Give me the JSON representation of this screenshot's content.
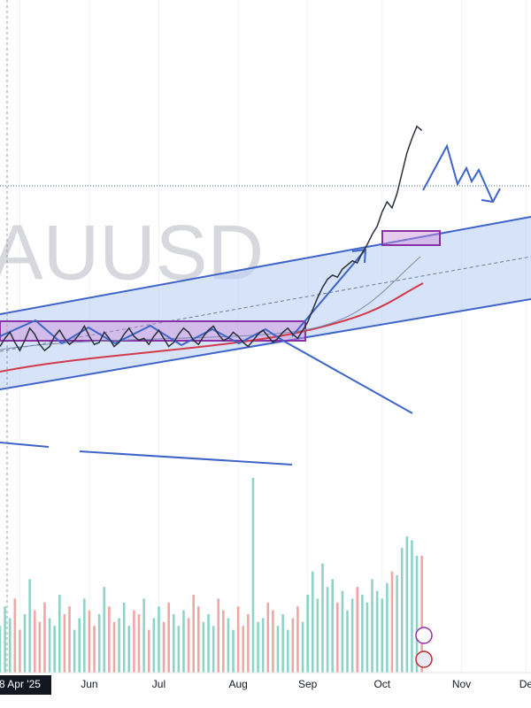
{
  "chart_data": {
    "type": "line",
    "watermark": "AUUSD",
    "xlim": [
      0,
      107
    ],
    "xticks": [
      {
        "value": 4,
        "label": "8 Apr '25"
      },
      {
        "value": 18,
        "label": "Jun"
      },
      {
        "value": 32,
        "label": "Jul"
      },
      {
        "value": 48,
        "label": "Aug"
      },
      {
        "value": 62,
        "label": "Sep"
      },
      {
        "value": 77,
        "label": "Oct"
      },
      {
        "value": 93,
        "label": "Nov"
      },
      {
        "value": 106,
        "label": "De"
      }
    ],
    "ylim": [
      1700,
      5000
    ],
    "y2lim": [
      0,
      250
    ],
    "series": [
      {
        "color": "#2a2f3a",
        "values": [
          3300,
          3340,
          3370,
          3320,
          3280,
          3330,
          3390,
          3360,
          3310,
          3280,
          3300,
          3350,
          3380,
          3340,
          3310,
          3330,
          3360,
          3400,
          3350,
          3310,
          3320,
          3370,
          3340,
          3300,
          3320,
          3360,
          3390,
          3350,
          3330,
          3340,
          3310,
          3350,
          3380,
          3340,
          3300,
          3320,
          3360,
          3390,
          3370,
          3330,
          3310,
          3350,
          3380,
          3400,
          3360,
          3330,
          3340,
          3370,
          3350,
          3320,
          3300,
          3330,
          3360,
          3380,
          3350,
          3320,
          3340,
          3370,
          3390,
          3360,
          3340,
          3380,
          3420,
          3480,
          3540,
          3590,
          3630,
          3650,
          3640,
          3680,
          3700,
          3720,
          3710,
          3760,
          3800,
          3850,
          3890,
          3960,
          4010,
          3980,
          4050,
          4150,
          4250,
          4320,
          4380,
          4360
        ]
      },
      {
        "type": "bar",
        "axis": "y2",
        "up_color": "#8fd3c8",
        "down_color": "#f2a6a4",
        "values": [
          60,
          85,
          70,
          95,
          55,
          75,
          120,
          80,
          65,
          90,
          70,
          60,
          100,
          75,
          85,
          55,
          70,
          95,
          80,
          60,
          75,
          110,
          85,
          65,
          70,
          90,
          60,
          80,
          75,
          95,
          55,
          70,
          85,
          65,
          90,
          75,
          60,
          80,
          70,
          100,
          85,
          65,
          75,
          60,
          95,
          80,
          70,
          55,
          85,
          60,
          75,
          250,
          65,
          70,
          90,
          80,
          60,
          75,
          55,
          70,
          85,
          65,
          100,
          130,
          95,
          140,
          110,
          120,
          90,
          105,
          80,
          95,
          110,
          100,
          90,
          120,
          105,
          95,
          115,
          130,
          125,
          160,
          175,
          170,
          150,
          150
        ]
      }
    ]
  }
}
